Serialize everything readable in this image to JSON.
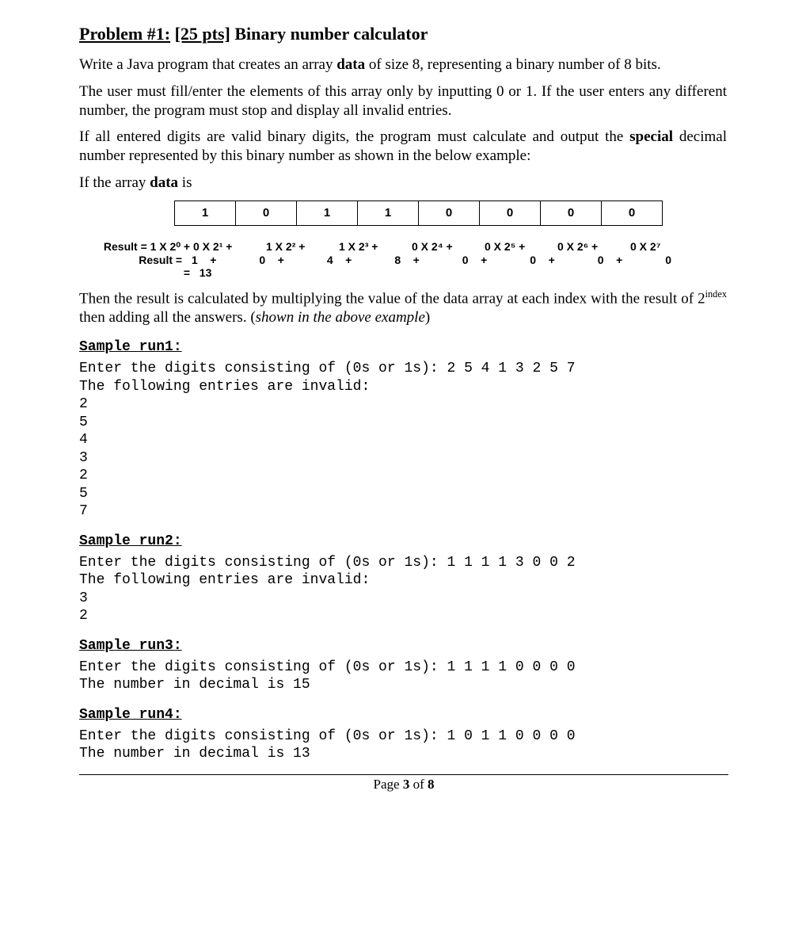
{
  "title": {
    "problem": "Problem #1:",
    "pts": "[25 pts]",
    "name": "Binary number calculator"
  },
  "para1_a": "Write a Java program that creates an array ",
  "para1_b": "data",
  "para1_c": " of size 8, representing a binary number of 8 bits.",
  "para2": "The user must fill/enter the elements of this array only by inputting 0 or 1. If the user enters any different number, the program must stop and display all invalid entries.",
  "para3_a": "If all entered digits are valid binary digits, the program must calculate and output the ",
  "para3_b": "special",
  "para3_c": " decimal number represented by this binary number as shown in the below example:",
  "para4_a": "If the array ",
  "para4_b": "data",
  "para4_c": " is",
  "array_cells": [
    "1",
    "0",
    "1",
    "1",
    "0",
    "0",
    "0",
    "0"
  ],
  "result": {
    "l1_label": "Result = 1 X 2⁰ +",
    "l1": [
      "0 X 2¹ +",
      "1 X 2² +",
      "1 X 2³ +",
      "0 X 2⁴ +",
      "0 X 2⁵ +",
      "0 X 2⁶ +",
      "0 X 2⁷"
    ],
    "l2_label": "Result =",
    "l2": [
      "  1    +",
      "  0    +",
      "  4    +",
      "  8    +",
      "  0    +",
      "  0    +",
      "  0    +",
      "  0"
    ],
    "l3_label": "=",
    "l3": "  13"
  },
  "para5_a": "Then the result is calculated by multiplying the value of the data array at each index with the result of 2",
  "para5_sup": "index",
  "para5_b": " then adding all the answers. (",
  "para5_it": "shown in the above example",
  "para5_c": ")",
  "samples": {
    "s1_hdr": "Sample run1:",
    "s1": "Enter the digits consisting of (0s or 1s): 2 5 4 1 3 2 5 7\nThe following entries are invalid:\n2\n5\n4\n3\n2\n5\n7",
    "s2_hdr": "Sample run2:",
    "s2": "Enter the digits consisting of (0s or 1s): 1 1 1 1 3 0 0 2\nThe following entries are invalid:\n3\n2",
    "s3_hdr": "Sample run3:",
    "s3": "Enter the digits consisting of (0s or 1s): 1 1 1 1 0 0 0 0\nThe number in decimal is 15",
    "s4_hdr": "Sample run4:",
    "s4": "Enter the digits consisting of (0s or 1s): 1 0 1 1 0 0 0 0\nThe number in decimal is 13"
  },
  "footer_a": "Page ",
  "footer_b": "3",
  "footer_c": " of ",
  "footer_d": "8"
}
